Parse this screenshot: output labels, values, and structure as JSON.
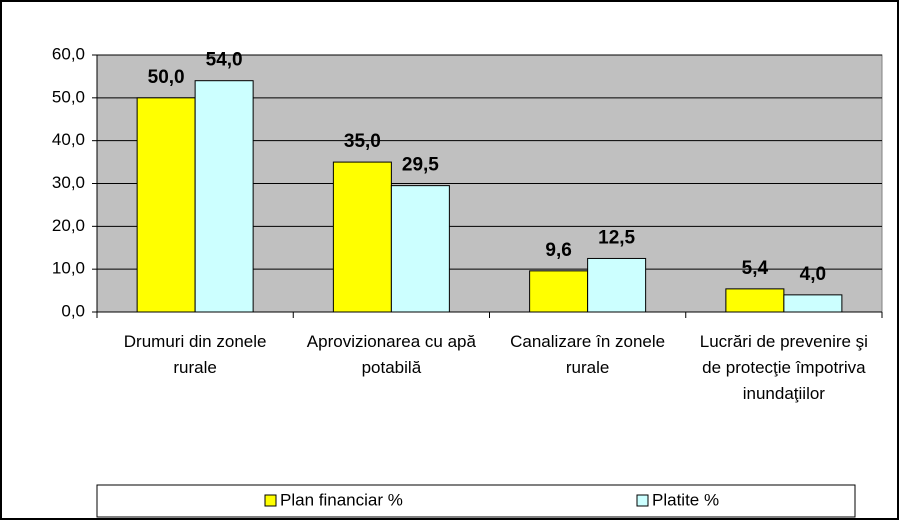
{
  "chart_data": {
    "type": "bar",
    "categories": [
      "Drumuri din zonele rurale",
      "Aprovizionarea cu apă potabilă",
      "Canalizare în zonele rurale",
      "Lucrări de prevenire şi de protecţie împotriva inundaţiilor"
    ],
    "series": [
      {
        "name": "Plan financiar %",
        "color": "#ffff00",
        "values": [
          50.0,
          35.0,
          9.6,
          5.4
        ],
        "value_labels": [
          "50,0",
          "35,0",
          "9,6",
          "5,4"
        ]
      },
      {
        "name": "Platite %",
        "color": "#ccffff",
        "values": [
          54.0,
          29.5,
          12.5,
          4.0
        ],
        "value_labels": [
          "54,0",
          "29,5",
          "12,5",
          "4,0"
        ]
      }
    ],
    "ylim": [
      0,
      60
    ],
    "yticks": [
      {
        "value": 0,
        "label": "0,0"
      },
      {
        "value": 10,
        "label": "10,0"
      },
      {
        "value": 20,
        "label": "20,0"
      },
      {
        "value": 30,
        "label": "30,0"
      },
      {
        "value": 40,
        "label": "40,0"
      },
      {
        "value": 50,
        "label": "50,0"
      },
      {
        "value": 60,
        "label": "60,0"
      }
    ],
    "grid": true,
    "legend": "bottom"
  }
}
